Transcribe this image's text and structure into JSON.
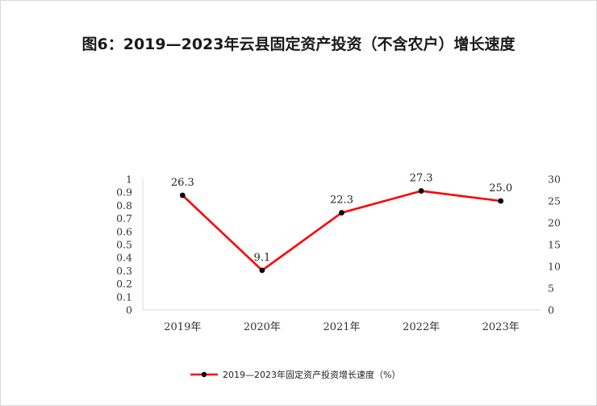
{
  "chart_data": {
    "type": "line",
    "title": "图6：2019—2023年云县固定资产投资（不含农户）增长速度",
    "categories": [
      "2019年",
      "2020年",
      "2021年",
      "2022年",
      "2023年"
    ],
    "series": [
      {
        "name": "2019—2023年固定资产投资增长速度（%）",
        "values": [
          26.3,
          9.1,
          22.3,
          27.3,
          25.0
        ],
        "value_labels": [
          "26.3",
          "9.1",
          "22.3",
          "27.3",
          "25.0"
        ],
        "axis": "right"
      }
    ],
    "left_axis": {
      "ylim": [
        0,
        1
      ],
      "ticks": [
        "0",
        "0.1",
        "0.2",
        "0.3",
        "0.4",
        "0.5",
        "0.6",
        "0.7",
        "0.8",
        "0.9",
        "1"
      ]
    },
    "right_axis": {
      "ylim": [
        0,
        30
      ],
      "ticks": [
        "0",
        "5",
        "10",
        "15",
        "20",
        "25",
        "30"
      ]
    },
    "grid": false,
    "legend": "bottom",
    "line_color": "#ff0000",
    "marker_color": "#000000"
  }
}
